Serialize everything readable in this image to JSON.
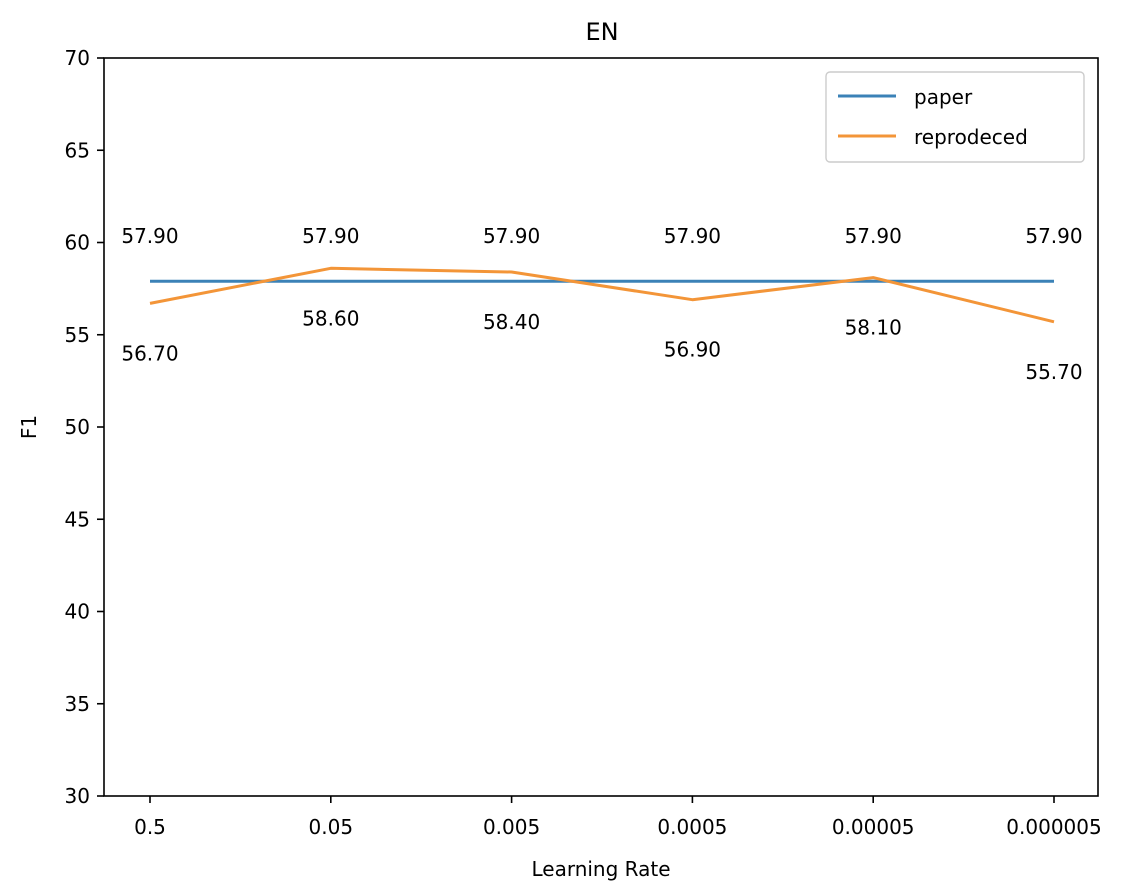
{
  "chart_data": {
    "type": "line",
    "title": "EN",
    "xlabel": "Learning Rate",
    "ylabel": "F1",
    "categories": [
      "0.5",
      "0.05",
      "0.005",
      "0.0005",
      "0.00005",
      "0.000005"
    ],
    "ylim": [
      30,
      70
    ],
    "yticks": [
      30,
      35,
      40,
      45,
      50,
      55,
      60,
      65,
      70
    ],
    "grid": false,
    "legend_position": "top-right",
    "series": [
      {
        "name": "paper",
        "color": "#3b82b7",
        "values": [
          57.9,
          57.9,
          57.9,
          57.9,
          57.9,
          57.9
        ],
        "labels": [
          "57.90",
          "57.90",
          "57.90",
          "57.90",
          "57.90",
          "57.90"
        ],
        "label_position": "above"
      },
      {
        "name": "reprodeced",
        "color": "#f39538",
        "values": [
          56.7,
          58.6,
          58.4,
          56.9,
          58.1,
          55.7
        ],
        "labels": [
          "56.70",
          "58.60",
          "58.40",
          "56.90",
          "58.10",
          "55.70"
        ],
        "label_position": "below"
      }
    ]
  }
}
